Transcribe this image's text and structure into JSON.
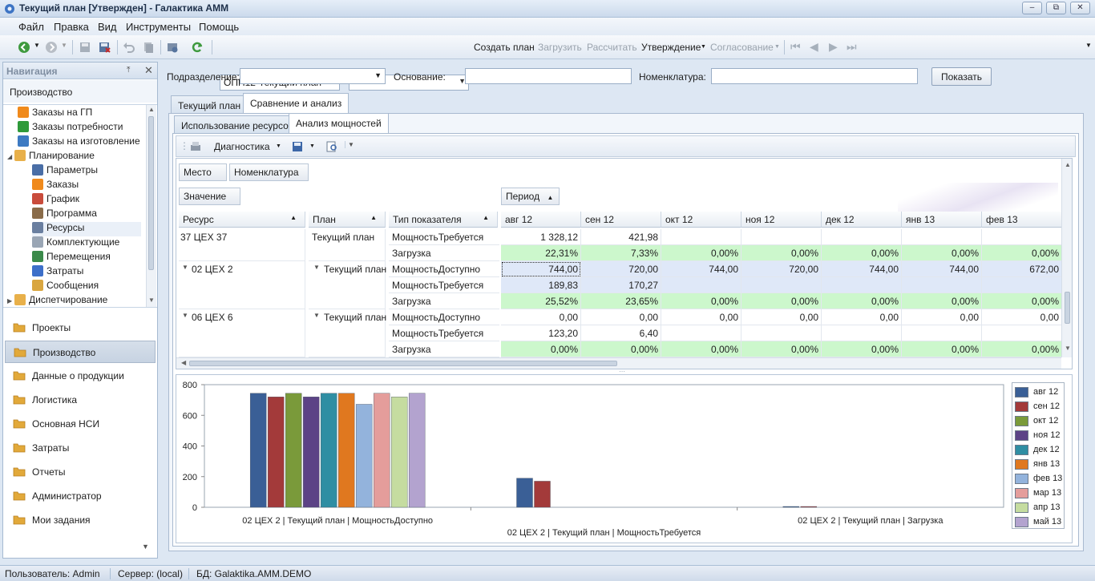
{
  "window": {
    "title": "Текущий план [Утвержден] - Галактика АММ"
  },
  "menu": [
    "Файл",
    "Правка",
    "Вид",
    "Инструменты",
    "Помощь"
  ],
  "toolbar": {
    "plan_combo": "ОПП12-Текущий план",
    "second_combo": "",
    "create_plan": "Создать план",
    "load": "Загрузить",
    "calculate": "Рассчитать",
    "approval": "Утверждение",
    "agreement": "Согласование"
  },
  "nav": {
    "header": "Навигация",
    "section": "Производство",
    "tree": [
      {
        "label": "Заказы на ГП",
        "indent": 1,
        "icon": "orders-icon",
        "color": "#f08a1c"
      },
      {
        "label": "Заказы потребности",
        "indent": 1,
        "icon": "dollar-icon",
        "color": "#2f9a3a"
      },
      {
        "label": "Заказы на изготовление",
        "indent": 1,
        "icon": "manufacture-icon",
        "color": "#3d7ac2"
      },
      {
        "label": "Планирование",
        "indent": 0,
        "icon": "folder-icon",
        "color": "#e8b04a",
        "expanded": true
      },
      {
        "label": "Параметры",
        "indent": 2,
        "icon": "gears-icon",
        "color": "#4a6ea6"
      },
      {
        "label": "Заказы",
        "indent": 2,
        "icon": "orders-icon",
        "color": "#f08a1c"
      },
      {
        "label": "График",
        "indent": 2,
        "icon": "calendar-icon",
        "color": "#c94c3c"
      },
      {
        "label": "Программа",
        "indent": 2,
        "icon": "program-icon",
        "color": "#8a6c4a"
      },
      {
        "label": "Ресурсы",
        "indent": 2,
        "icon": "resources-icon",
        "color": "#6a7fa0",
        "selected": true
      },
      {
        "label": "Комплектующие",
        "indent": 2,
        "icon": "components-icon",
        "color": "#9aa6b5"
      },
      {
        "label": "Перемещения",
        "indent": 2,
        "icon": "move-icon",
        "color": "#3b8a4a"
      },
      {
        "label": "Затраты",
        "indent": 2,
        "icon": "costs-icon",
        "color": "#3d6fc9"
      },
      {
        "label": "Сообщения",
        "indent": 2,
        "icon": "message-icon",
        "color": "#d9a640"
      },
      {
        "label": "Диспетчирование",
        "indent": 0,
        "icon": "folder-icon",
        "color": "#e8b04a",
        "expanded": false
      }
    ],
    "groups": [
      "Проекты",
      "Производство",
      "Данные о продукции",
      "Логистика",
      "Основная НСИ",
      "Затраты",
      "Отчеты",
      "Администратор",
      "Мои задания"
    ]
  },
  "filters": {
    "division_label": "Подразделение:",
    "basis_label": "Основание:",
    "nomenclature_label": "Номенклатура:",
    "show_button": "Показать"
  },
  "tabs": {
    "outer": [
      "Текущий план",
      "Сравнение и анализ"
    ],
    "inner": [
      "Использование ресурсов",
      "Анализ мощностей"
    ]
  },
  "grid_toolbar": {
    "diagnostics": "Диагностика"
  },
  "grid": {
    "filter_fields": [
      "Место",
      "Номенклатура"
    ],
    "data_field": "Значение",
    "column_field": "Период",
    "row_fields": [
      "Ресурс",
      "План",
      "Тип показателя"
    ],
    "periods": [
      "авг 12",
      "сен 12",
      "окт 12",
      "ноя 12",
      "дек 12",
      "янв 13",
      "фев 13"
    ],
    "groups": [
      {
        "resource": "37 ЦЕХ 37",
        "plan": "Текущий план",
        "collapsed_icon": false,
        "rows": [
          {
            "type": "МощностьТребуется",
            "style": "plain",
            "values": [
              "1 328,12",
              "421,98",
              "",
              "",
              "",
              "",
              ""
            ]
          },
          {
            "type": "Загрузка",
            "style": "green",
            "values": [
              "22,31%",
              "7,33%",
              "0,00%",
              "0,00%",
              "0,00%",
              "0,00%",
              "0,00%"
            ]
          }
        ]
      },
      {
        "resource": "02 ЦЕХ 2",
        "plan": "Текущий план",
        "collapsed_icon": true,
        "rows": [
          {
            "type": "МощностьДоступно",
            "style": "blue",
            "values": [
              "744,00",
              "720,00",
              "744,00",
              "720,00",
              "744,00",
              "744,00",
              "672,00"
            ]
          },
          {
            "type": "МощностьТребуется",
            "style": "blue",
            "values": [
              "189,83",
              "170,27",
              "",
              "",
              "",
              "",
              ""
            ]
          },
          {
            "type": "Загрузка",
            "style": "green",
            "values": [
              "25,52%",
              "23,65%",
              "0,00%",
              "0,00%",
              "0,00%",
              "0,00%",
              "0,00%"
            ]
          }
        ]
      },
      {
        "resource": "06 ЦЕХ 6",
        "plan": "Текущий план",
        "collapsed_icon": true,
        "rows": [
          {
            "type": "МощностьДоступно",
            "style": "plain",
            "values": [
              "0,00",
              "0,00",
              "0,00",
              "0,00",
              "0,00",
              "0,00",
              "0,00"
            ]
          },
          {
            "type": "МощностьТребуется",
            "style": "plain",
            "values": [
              "123,20",
              "6,40",
              "",
              "",
              "",
              "",
              ""
            ]
          },
          {
            "type": "Загрузка",
            "style": "green",
            "values": [
              "0,00%",
              "0,00%",
              "0,00%",
              "0,00%",
              "0,00%",
              "0,00%",
              "0,00%"
            ]
          }
        ]
      }
    ]
  },
  "chart_data": {
    "type": "bar",
    "title": "",
    "xlabel": "",
    "ylabel": "",
    "ylim": [
      0,
      800
    ],
    "yticks": [
      0,
      200,
      400,
      600,
      800
    ],
    "categories": [
      "02 ЦЕХ 2 | Текущий план | МощностьДоступно",
      "02 ЦЕХ 2 | Текущий план | МощностьТребуется",
      "02 ЦЕХ 2 | Текущий план | Загрузка"
    ],
    "series": [
      {
        "name": "авг 12",
        "color": "#3a5f96",
        "values": [
          744,
          189.83,
          0.26
        ]
      },
      {
        "name": "сен 12",
        "color": "#a33a3a",
        "values": [
          720,
          170.27,
          0.24
        ]
      },
      {
        "name": "окт 12",
        "color": "#7a9a3a",
        "values": [
          744,
          0,
          0
        ]
      },
      {
        "name": "ноя 12",
        "color": "#5c4386",
        "values": [
          720,
          0,
          0
        ]
      },
      {
        "name": "дек 12",
        "color": "#2f8ea3",
        "values": [
          744,
          0,
          0
        ]
      },
      {
        "name": "янв 13",
        "color": "#e0781f",
        "values": [
          744,
          0,
          0
        ]
      },
      {
        "name": "фев 13",
        "color": "#93b3dc",
        "values": [
          672,
          0,
          0
        ]
      },
      {
        "name": "мар 13",
        "color": "#e49d9b",
        "values": [
          744,
          0,
          0
        ]
      },
      {
        "name": "апр 13",
        "color": "#c5dca0",
        "values": [
          720,
          0,
          0
        ]
      },
      {
        "name": "май 13",
        "color": "#b3a3cf",
        "values": [
          744,
          0,
          0
        ]
      }
    ]
  },
  "status": {
    "user": "Пользователь: Admin",
    "server": "Сервер: (local)",
    "db": "БД: Galaktika.AMM.DEMO"
  }
}
